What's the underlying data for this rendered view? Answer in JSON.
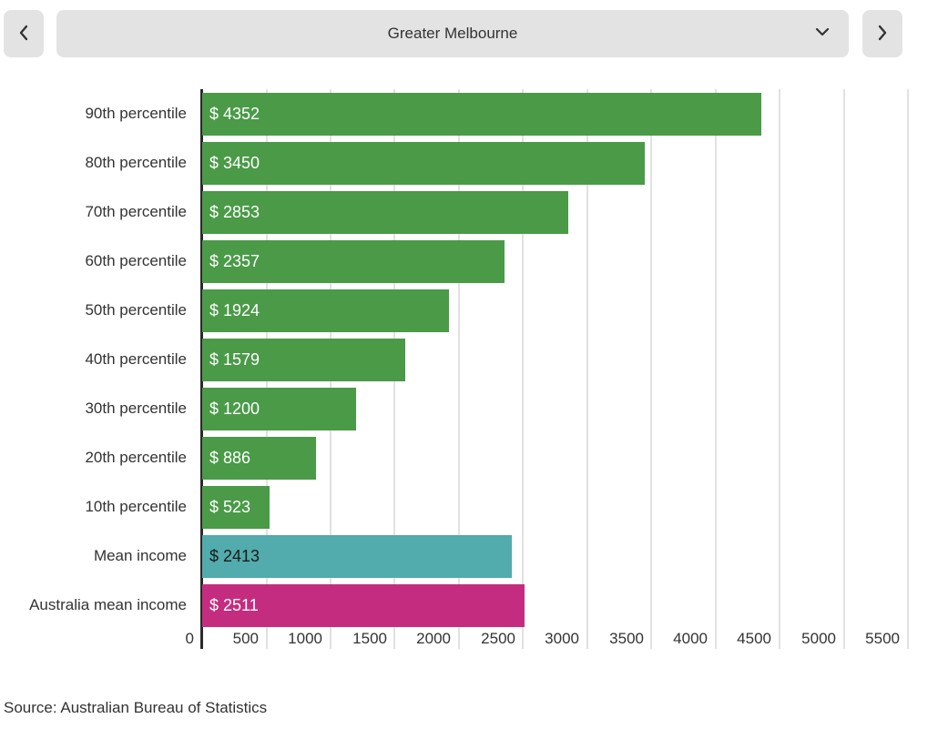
{
  "toolbar": {
    "region_selected": "Greater Melbourne",
    "icons": {
      "prev": "chevron-left",
      "next": "chevron-right",
      "dropdown": "chevron-down"
    }
  },
  "chart_data": {
    "type": "bar",
    "orientation": "horizontal",
    "title": "",
    "xlabel": "",
    "ylabel": "",
    "categories": [
      "90th percentile",
      "80th percentile",
      "70th percentile",
      "60th percentile",
      "50th percentile",
      "40th percentile",
      "30th percentile",
      "20th percentile",
      "10th percentile",
      "Mean income",
      "Australia mean income"
    ],
    "values": [
      4352,
      3450,
      2853,
      2357,
      1924,
      1579,
      1200,
      886,
      523,
      2413,
      2511
    ],
    "value_labels": [
      "$ 4352",
      "$ 3450",
      "$ 2853",
      "$ 2357",
      "$ 1924",
      "$ 1579",
      "$ 1200",
      "$ 886",
      "$ 523",
      "$ 2413",
      "$ 2511"
    ],
    "bar_colors": [
      "#4a9a48",
      "#4a9a48",
      "#4a9a48",
      "#4a9a48",
      "#4a9a48",
      "#4a9a48",
      "#4a9a48",
      "#4a9a48",
      "#4a9a48",
      "#52abac",
      "#c42d7f"
    ],
    "value_label_colors": [
      "#ffffff",
      "#ffffff",
      "#ffffff",
      "#ffffff",
      "#ffffff",
      "#ffffff",
      "#ffffff",
      "#ffffff",
      "#ffffff",
      "#1a1a1a",
      "#ffffff"
    ],
    "xlim": [
      0,
      5500
    ],
    "xticks": [
      0,
      500,
      1000,
      1500,
      2000,
      2500,
      3000,
      3500,
      4000,
      4500,
      5000,
      5500
    ],
    "grid": true,
    "legend": false
  },
  "source_note": "Source: Australian Bureau of Statistics",
  "colors": {
    "bar_percentile": "#4a9a48",
    "bar_mean": "#52abac",
    "bar_australia_mean": "#c42d7f",
    "control_background": "#e3e3e3",
    "axis_line": "#2a2a2a",
    "gridline": "#e1e1e1",
    "text": "#333333"
  }
}
